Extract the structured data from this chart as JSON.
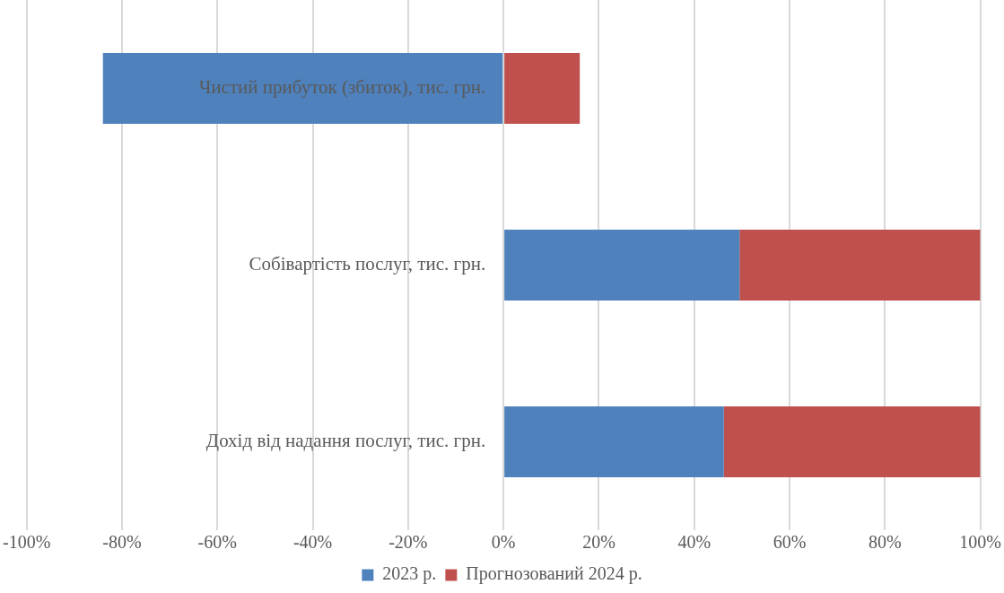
{
  "chart_data": {
    "type": "bar",
    "orientation": "horizontal",
    "stacked": true,
    "categories": [
      "Чистий прибуток (збиток), тис. грн.",
      "Собівартість послуг, тис. грн.",
      "Дохід від надання послуг, тис. грн."
    ],
    "series": [
      {
        "name": "2023 р.",
        "color": "#4f81bd",
        "values": [
          -84,
          49.5,
          46.2
        ]
      },
      {
        "name": "Прогнозований 2024 р.",
        "color": "#c0504d",
        "values": [
          16,
          50.5,
          53.8
        ]
      }
    ],
    "xlim": [
      -100,
      100
    ],
    "xticks": [
      {
        "value": -100,
        "label": "-100%"
      },
      {
        "value": -80,
        "label": "-80%"
      },
      {
        "value": -60,
        "label": "-60%"
      },
      {
        "value": -40,
        "label": "-40%"
      },
      {
        "value": -20,
        "label": "-20%"
      },
      {
        "value": 0,
        "label": "0%"
      },
      {
        "value": 20,
        "label": "20%"
      },
      {
        "value": 40,
        "label": "40%"
      },
      {
        "value": 60,
        "label": "60%"
      },
      {
        "value": 80,
        "label": "80%"
      },
      {
        "value": 100,
        "label": "100%"
      }
    ],
    "grid": "x",
    "legend": "bottom"
  }
}
